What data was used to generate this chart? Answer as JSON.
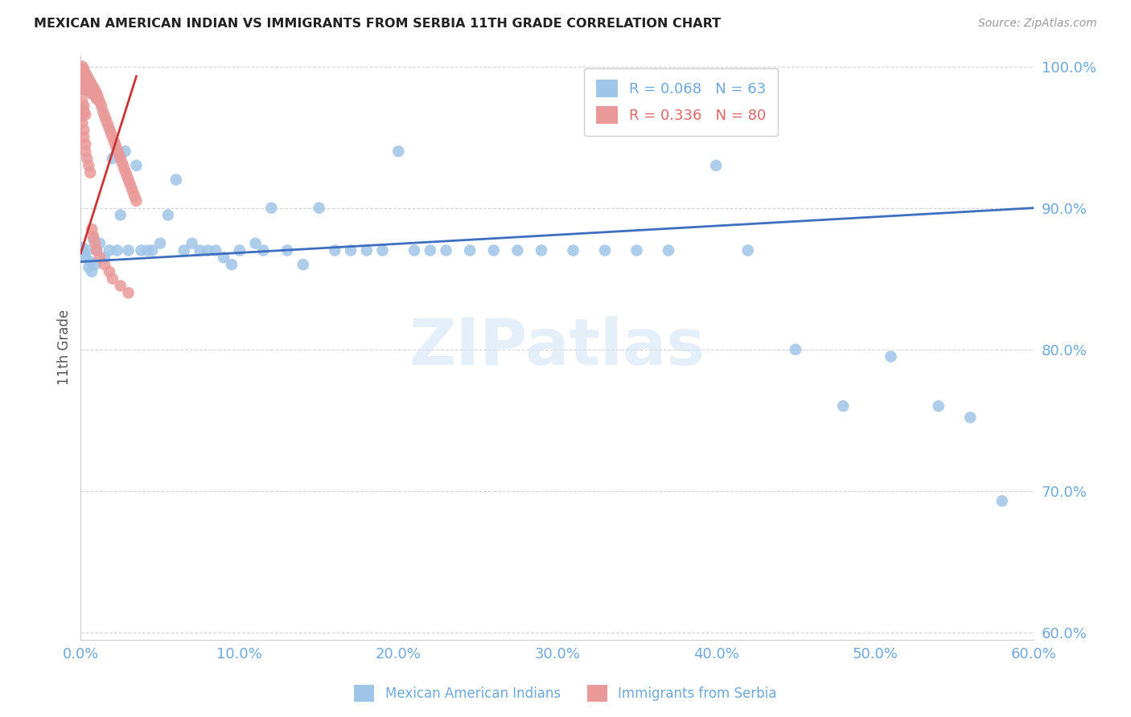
{
  "title": "MEXICAN AMERICAN INDIAN VS IMMIGRANTS FROM SERBIA 11TH GRADE CORRELATION CHART",
  "source": "Source: ZipAtlas.com",
  "ylabel": "11th Grade",
  "y_ticks": [
    60.0,
    70.0,
    80.0,
    90.0,
    100.0
  ],
  "x_ticks": [
    0.0,
    10.0,
    20.0,
    30.0,
    40.0,
    50.0,
    60.0
  ],
  "x_range": [
    0.0,
    0.6
  ],
  "y_range": [
    0.595,
    1.008
  ],
  "legend1_label": "R = 0.068   N = 63",
  "legend2_label": "R = 0.336   N = 80",
  "legend1_color": "#6fa8dc",
  "legend2_color": "#e06666",
  "watermark": "ZIPatlas",
  "blue_scatter_x": [
    0.001,
    0.002,
    0.003,
    0.004,
    0.005,
    0.006,
    0.007,
    0.008,
    0.009,
    0.01,
    0.012,
    0.015,
    0.018,
    0.02,
    0.023,
    0.025,
    0.028,
    0.03,
    0.035,
    0.038,
    0.042,
    0.045,
    0.05,
    0.055,
    0.06,
    0.065,
    0.07,
    0.075,
    0.08,
    0.085,
    0.09,
    0.095,
    0.1,
    0.11,
    0.115,
    0.12,
    0.13,
    0.14,
    0.15,
    0.16,
    0.17,
    0.18,
    0.19,
    0.2,
    0.21,
    0.22,
    0.23,
    0.245,
    0.26,
    0.275,
    0.29,
    0.31,
    0.33,
    0.35,
    0.37,
    0.4,
    0.42,
    0.45,
    0.48,
    0.51,
    0.54,
    0.56,
    0.58
  ],
  "blue_scatter_y": [
    0.872,
    0.868,
    0.865,
    0.87,
    0.858,
    0.862,
    0.855,
    0.878,
    0.86,
    0.87,
    0.875,
    0.865,
    0.87,
    0.935,
    0.87,
    0.895,
    0.94,
    0.87,
    0.93,
    0.87,
    0.87,
    0.87,
    0.875,
    0.895,
    0.92,
    0.87,
    0.875,
    0.87,
    0.87,
    0.87,
    0.865,
    0.86,
    0.87,
    0.875,
    0.87,
    0.9,
    0.87,
    0.86,
    0.9,
    0.87,
    0.87,
    0.87,
    0.87,
    0.94,
    0.87,
    0.87,
    0.87,
    0.87,
    0.87,
    0.87,
    0.87,
    0.87,
    0.87,
    0.87,
    0.87,
    0.93,
    0.87,
    0.8,
    0.76,
    0.795,
    0.76,
    0.752,
    0.693
  ],
  "pink_scatter_x": [
    0.001,
    0.001,
    0.001,
    0.001,
    0.001,
    0.002,
    0.002,
    0.002,
    0.002,
    0.002,
    0.003,
    0.003,
    0.003,
    0.003,
    0.004,
    0.004,
    0.004,
    0.005,
    0.005,
    0.005,
    0.006,
    0.006,
    0.006,
    0.007,
    0.007,
    0.008,
    0.008,
    0.009,
    0.009,
    0.01,
    0.01,
    0.011,
    0.012,
    0.013,
    0.014,
    0.015,
    0.016,
    0.017,
    0.018,
    0.019,
    0.02,
    0.021,
    0.022,
    0.023,
    0.024,
    0.025,
    0.026,
    0.027,
    0.028,
    0.029,
    0.03,
    0.031,
    0.032,
    0.033,
    0.034,
    0.035,
    0.001,
    0.001,
    0.002,
    0.002,
    0.003,
    0.003,
    0.004,
    0.005,
    0.006,
    0.007,
    0.008,
    0.009,
    0.01,
    0.012,
    0.015,
    0.018,
    0.02,
    0.025,
    0.03,
    0.001,
    0.001,
    0.002,
    0.002,
    0.003
  ],
  "pink_scatter_y": [
    1.0,
    0.998,
    0.995,
    0.992,
    0.988,
    0.998,
    0.995,
    0.991,
    0.987,
    0.983,
    0.995,
    0.991,
    0.987,
    0.983,
    0.993,
    0.989,
    0.985,
    0.991,
    0.987,
    0.983,
    0.989,
    0.985,
    0.981,
    0.987,
    0.983,
    0.985,
    0.981,
    0.983,
    0.979,
    0.981,
    0.977,
    0.978,
    0.975,
    0.972,
    0.968,
    0.965,
    0.962,
    0.959,
    0.956,
    0.953,
    0.95,
    0.947,
    0.944,
    0.941,
    0.938,
    0.935,
    0.932,
    0.929,
    0.926,
    0.923,
    0.92,
    0.917,
    0.914,
    0.911,
    0.908,
    0.905,
    0.965,
    0.96,
    0.955,
    0.95,
    0.945,
    0.94,
    0.935,
    0.93,
    0.925,
    0.885,
    0.88,
    0.875,
    0.87,
    0.865,
    0.86,
    0.855,
    0.85,
    0.845,
    0.84,
    0.97,
    0.975,
    0.968,
    0.972,
    0.966
  ],
  "blue_line_x": [
    0.0,
    0.6
  ],
  "blue_line_y": [
    0.862,
    0.9
  ],
  "pink_line_x": [
    0.0,
    0.035
  ],
  "pink_line_y": [
    0.868,
    0.993
  ],
  "scatter_blue_color": "#9fc5e8",
  "scatter_pink_color": "#ea9999",
  "line_blue_color": "#3d6ebf",
  "line_pink_color": "#cc3333",
  "grid_color": "#bbbbbb",
  "tick_color": "#6fa8dc",
  "background_color": "#ffffff"
}
